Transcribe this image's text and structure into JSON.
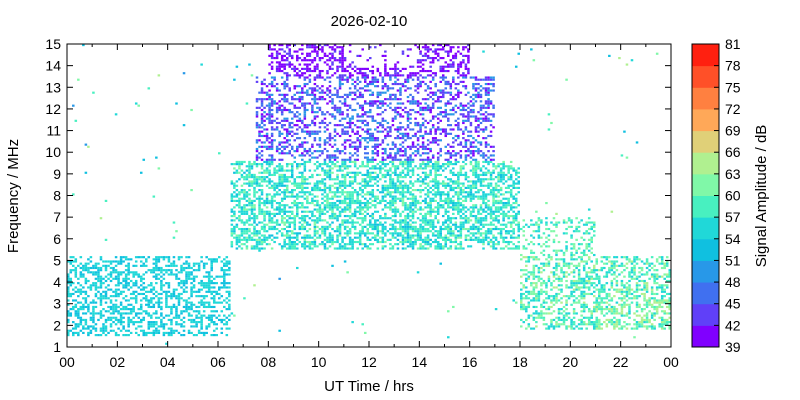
{
  "chart_data": {
    "type": "heatmap",
    "title": "2026-02-10",
    "xlabel": "UT Time / hrs",
    "ylabel": "Frequency / MHz",
    "colorbar_label": "Signal Amplitude / dB",
    "xlim": [
      0,
      24
    ],
    "ylim": [
      1,
      15
    ],
    "x_ticks": [
      "00",
      "02",
      "04",
      "06",
      "08",
      "10",
      "12",
      "14",
      "16",
      "18",
      "20",
      "22",
      "00"
    ],
    "y_ticks": [
      1,
      2,
      3,
      4,
      5,
      6,
      7,
      8,
      9,
      10,
      11,
      12,
      13,
      14,
      15
    ],
    "colorbar_ticks": [
      39,
      42,
      45,
      48,
      51,
      54,
      57,
      60,
      63,
      66,
      69,
      72,
      75,
      78,
      81
    ],
    "colorbar_colors": [
      "#8000ff",
      "#6040f8",
      "#4070f0",
      "#2898e8",
      "#10c0e0",
      "#20d8d8",
      "#48f0c0",
      "#80f8a8",
      "#b0f090",
      "#e0d078",
      "#ffa858",
      "#ff8040",
      "#ff5028",
      "#ff2010"
    ],
    "region_summary": [
      {
        "x_range": [
          0,
          6
        ],
        "y_range": [
          1.5,
          5
        ],
        "dominant_db": 52
      },
      {
        "x_range": [
          7,
          18
        ],
        "y_range": [
          7,
          9.5
        ],
        "dominant_db": 55
      },
      {
        "x_range": [
          8,
          16
        ],
        "y_range": [
          10,
          15
        ],
        "dominant_db": 41
      },
      {
        "x_range": [
          18,
          24
        ],
        "y_range": [
          1.5,
          5
        ],
        "dominant_db": 58
      }
    ],
    "grid": false,
    "colorbar_position": "right"
  }
}
